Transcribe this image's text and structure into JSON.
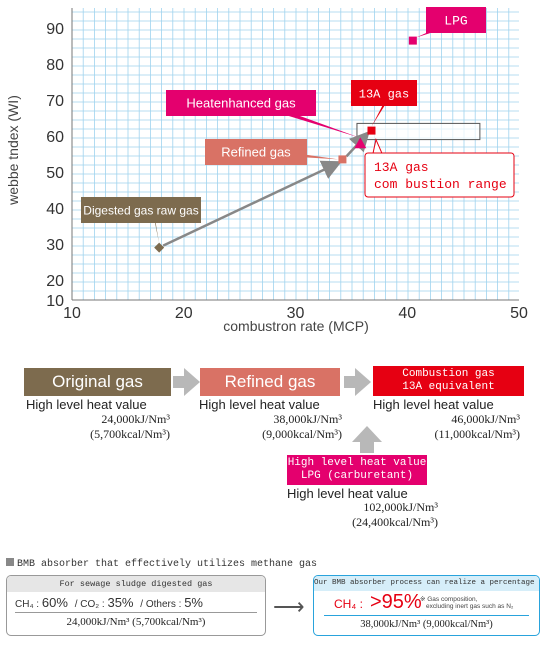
{
  "chart_data": {
    "type": "scatter",
    "xlabel": "combustron rate (MCP)",
    "ylabel": "webbe tndex (WI)",
    "xlim": [
      10,
      50
    ],
    "ylim": [
      20,
      95
    ],
    "x_ticks": [
      10,
      20,
      30,
      40,
      50
    ],
    "y_ticks": [
      20,
      30,
      40,
      50,
      60,
      70,
      80,
      90
    ],
    "grid": true,
    "points": [
      {
        "label": "Digested gas raw gas",
        "x": 17.8,
        "y": 29,
        "color": "#7d6b4e",
        "shape": "diamond"
      },
      {
        "label": "Refined gas",
        "x": 34.2,
        "y": 53.5,
        "color": "#d97265",
        "shape": "square"
      },
      {
        "label": "Heatenhanced gas",
        "x": 35.8,
        "y": 58,
        "color": "#e4006e",
        "shape": "triangle"
      },
      {
        "label": "13A gas",
        "x": 36.8,
        "y": 61.5,
        "color": "#e60012",
        "shape": "square"
      },
      {
        "label": "LPG",
        "x": 40.5,
        "y": 86.5,
        "color": "#e4006e",
        "shape": "square"
      }
    ],
    "range_box": {
      "label": "13A gas\ncom bustion range",
      "x": [
        35.5,
        46.5
      ],
      "y": [
        59,
        63.5
      ]
    }
  },
  "flow": {
    "original": {
      "title": "Original gas",
      "label": "High level heat value",
      "v1": "24,000kJ/Nm³",
      "v2": "(5,700kcal/Nm³)"
    },
    "refined": {
      "title": "Refined gas",
      "label": "High level heat value",
      "v1": "38,000kJ/Nm³",
      "v2": "(9,000kcal/Nm³)"
    },
    "combustion": {
      "title1": "Combustion gas",
      "title2": "13A equivalent",
      "label": "High level heat value",
      "v1": "46,000kJ/Nm³",
      "v2": "(11,000kcal/Nm³)"
    },
    "lpg": {
      "title1": "High level heat value",
      "title2": "LPG (carburetant)",
      "label": "High level heat value",
      "v1": "102,000kJ/Nm³",
      "v2": "(24,400kcal/Nm³)"
    }
  },
  "bmb": {
    "heading": "BMB absorber that effectively utilizes methane gas",
    "left": {
      "header": "For sewage sludge digested gas",
      "ch4_label": "CH₄ : ",
      "ch4_val": "60%",
      "co2_label": "/ CO₂ : ",
      "co2_val": "35%",
      "others_label": "/ Others : ",
      "others_val": "5%",
      "value": "24,000kJ/Nm³ (5,700kcal/Nm³)"
    },
    "arrow": "⟶",
    "right": {
      "header": "Our BMB absorber process can realize a percentage of",
      "ch4_label": "CH₄ :",
      "ch4_val": ">95%",
      "note1": "※ Gas composition,",
      "note2": "excluding inert gas such as N₂",
      "value": "38,000kJ/Nm³ (9,000kcal/Nm³)"
    }
  }
}
